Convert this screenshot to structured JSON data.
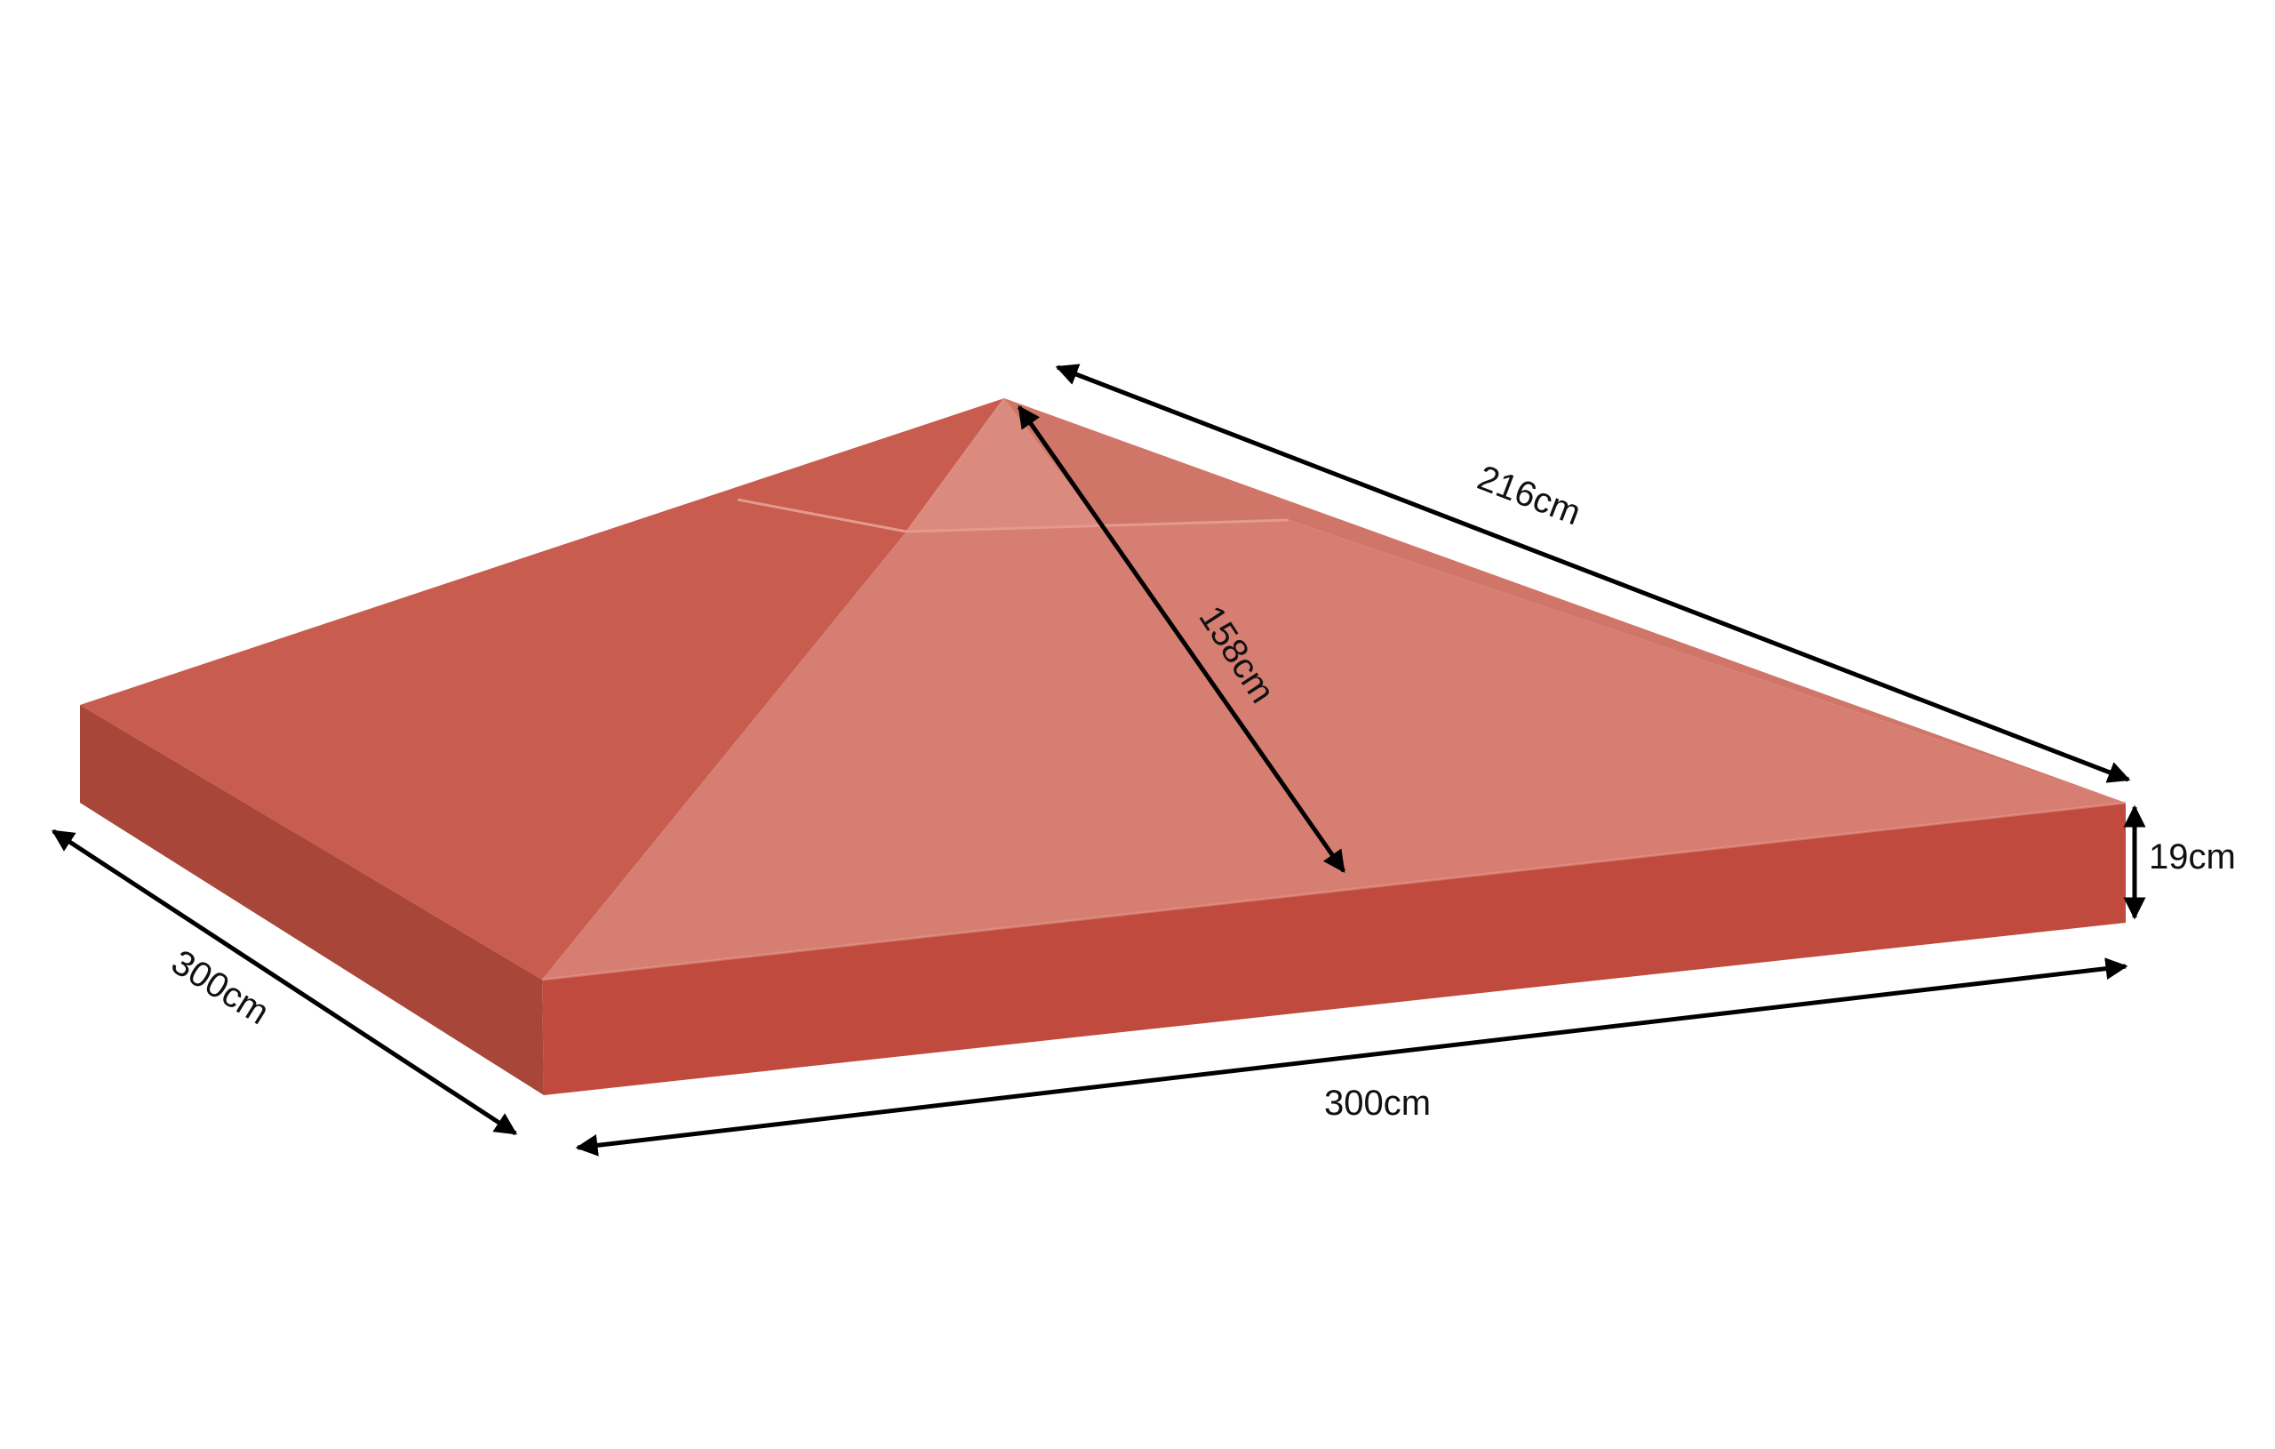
{
  "product": {
    "colors": {
      "roof_top_left": "#c75c4f",
      "roof_front_facet": "#d77e72",
      "roof_right_facet": "#d07668",
      "roof_ridge_highlight": "#db8a7e",
      "side_wall_front": "#bf4a3d",
      "side_wall_left": "#a8463a",
      "seam": "#e59a8e",
      "arrow": "#000000"
    }
  },
  "dimensions": {
    "top_edge_length": "216cm",
    "slope_length": "158cm",
    "wall_height": "19cm",
    "front_width": "300cm",
    "side_depth": "300cm"
  }
}
